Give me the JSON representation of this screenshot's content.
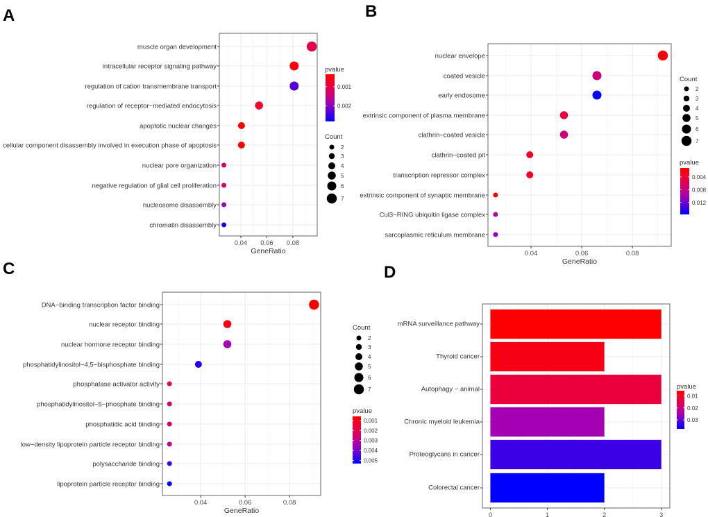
{
  "colors": {
    "low_p": "#FF0000",
    "mid1": "#E0005A",
    "mid2": "#A000B8",
    "high_p": "#0000FF",
    "grid": "#EBEBEB",
    "frame": "#7F7F7F"
  },
  "chart_data": [
    {
      "panel": "A",
      "type": "scatter",
      "xlabel": "GeneRatio",
      "xlim": [
        0.0235,
        0.0987
      ],
      "xticks": [
        0.04,
        0.06,
        0.08
      ],
      "xtick_labels": [
        "0.04",
        "0.06",
        "0.08"
      ],
      "size_legend_title": "Count",
      "size_legend": [
        2,
        3,
        4,
        5,
        6,
        7
      ],
      "color_legend_title": "pvalue",
      "color_range": [
        0.00036,
        0.0028
      ],
      "color_ticks": [
        0.001,
        0.002
      ],
      "color_tick_labels": [
        "0.001",
        "0.002"
      ],
      "terms": [
        {
          "label": "muscle organ development",
          "x": 0.0945,
          "count": 7,
          "p": 0.0011
        },
        {
          "label": "intracellular receptor signaling pathway",
          "x": 0.081,
          "count": 6,
          "p": 0.0005
        },
        {
          "label": "regulation of cation transmembrane transport",
          "x": 0.081,
          "count": 6,
          "p": 0.0023
        },
        {
          "label": "regulation of receptor−mediated endocytosis",
          "x": 0.054,
          "count": 5,
          "p": 0.0008
        },
        {
          "label": "apoptotic nuclear changes",
          "x": 0.0405,
          "count": 4,
          "p": 0.0003
        },
        {
          "label": "cellular component disassembly involved in execution phase of apoptosis",
          "x": 0.0405,
          "count": 4,
          "p": 0.0003
        },
        {
          "label": "nuclear pore organization",
          "x": 0.027,
          "count": 2,
          "p": 0.0013
        },
        {
          "label": "negative regulation of glial cell proliferation",
          "x": 0.027,
          "count": 2,
          "p": 0.0013
        },
        {
          "label": "nucleosome disassembly",
          "x": 0.027,
          "count": 2,
          "p": 0.0019
        },
        {
          "label": "chromatin disassembly",
          "x": 0.027,
          "count": 2,
          "p": 0.0027
        }
      ]
    },
    {
      "panel": "B",
      "type": "scatter",
      "xlabel": "GeneRatio",
      "xlim": [
        0.023,
        0.0953
      ],
      "xticks": [
        0.04,
        0.06,
        0.08
      ],
      "xtick_labels": [
        "0.04",
        "0.06",
        "0.08"
      ],
      "size_legend_title": "Count",
      "size_legend": [
        2,
        3,
        4,
        5,
        6,
        7
      ],
      "color_legend_title": "pvalue",
      "color_range": [
        0.0012,
        0.0157
      ],
      "color_ticks": [
        0.004,
        0.008,
        0.012
      ],
      "color_tick_labels": [
        "0.004",
        "0.008",
        "0.012"
      ],
      "terms": [
        {
          "label": "nuclear envelope",
          "x": 0.092,
          "count": 7,
          "p": 0.0018
        },
        {
          "label": "coated vesicle",
          "x": 0.066,
          "count": 6,
          "p": 0.0075
        },
        {
          "label": "early endosome",
          "x": 0.066,
          "count": 6,
          "p": 0.0155
        },
        {
          "label": "extrinsic component of plasma membrane",
          "x": 0.053,
          "count": 5,
          "p": 0.0048
        },
        {
          "label": "clathrin−coated vesicle",
          "x": 0.053,
          "count": 5,
          "p": 0.0075
        },
        {
          "label": "clathrin−coated pit",
          "x": 0.0395,
          "count": 4,
          "p": 0.0035
        },
        {
          "label": "transcription repressor complex",
          "x": 0.0395,
          "count": 4,
          "p": 0.0035
        },
        {
          "label": "extrinsic component of synaptic membrane",
          "x": 0.026,
          "count": 2,
          "p": 0.0013
        },
        {
          "label": "Cul3−RING ubiquitin ligase complex",
          "x": 0.026,
          "count": 2,
          "p": 0.0095
        },
        {
          "label": "sarcoplasmic reticulum membrane",
          "x": 0.026,
          "count": 2,
          "p": 0.0105
        }
      ]
    },
    {
      "panel": "C",
      "type": "scatter",
      "xlabel": "GeneRatio",
      "xlim": [
        0.0228,
        0.094
      ],
      "xticks": [
        0.04,
        0.06,
        0.08
      ],
      "xtick_labels": [
        "0.04",
        "0.06",
        "0.08"
      ],
      "size_legend_title": "Count",
      "size_legend": [
        2,
        3,
        4,
        5,
        6,
        7
      ],
      "color_legend_title": "pvalue",
      "color_range": [
        0.0006,
        0.0053
      ],
      "color_ticks": [
        0.001,
        0.002,
        0.003,
        0.004,
        0.005
      ],
      "color_tick_labels": [
        "0.001",
        "0.002",
        "0.003",
        "0.004",
        "0.005"
      ],
      "terms": [
        {
          "label": "DNA−binding transcription factor binding",
          "x": 0.091,
          "count": 7,
          "p": 0.0007
        },
        {
          "label": "nuclear receptor binding",
          "x": 0.052,
          "count": 5,
          "p": 0.001
        },
        {
          "label": "nuclear hormone receptor binding",
          "x": 0.052,
          "count": 5,
          "p": 0.0035
        },
        {
          "label": "phosphatidylinositol−4,5−bisphosphate binding",
          "x": 0.039,
          "count": 4,
          "p": 0.0049
        },
        {
          "label": "phosphatase activator activity",
          "x": 0.026,
          "count": 2,
          "p": 0.0018
        },
        {
          "label": "phosphatidylinositol−5−phosphate binding",
          "x": 0.026,
          "count": 2,
          "p": 0.0025
        },
        {
          "label": "phosphatidic acid binding",
          "x": 0.026,
          "count": 2,
          "p": 0.0025
        },
        {
          "label": "low−density lipoprotein particle receptor binding",
          "x": 0.026,
          "count": 2,
          "p": 0.003
        },
        {
          "label": "polysaccharide binding",
          "x": 0.026,
          "count": 2,
          "p": 0.0046
        },
        {
          "label": "lipoprotein particle receptor binding",
          "x": 0.026,
          "count": 2,
          "p": 0.0053
        }
      ]
    },
    {
      "panel": "D",
      "type": "bar",
      "xlabel": "",
      "xlim": [
        -0.14,
        3.15
      ],
      "xticks": [
        0,
        1,
        2,
        3
      ],
      "xtick_labels": [
        "0",
        "1",
        "2",
        "3"
      ],
      "color_legend_title": "pvalue",
      "color_range": [
        0.0056,
        0.0375
      ],
      "color_ticks": [
        0.01,
        0.02,
        0.03
      ],
      "color_tick_labels": [
        "0.01",
        "0.02",
        "0.03"
      ],
      "terms": [
        {
          "label": "mRNA surveillance pathway",
          "x": 3,
          "p": 0.0056
        },
        {
          "label": "Thyroid cancer",
          "x": 2,
          "p": 0.008
        },
        {
          "label": "Autophagy − animal",
          "x": 3,
          "p": 0.013
        },
        {
          "label": "Chronic myeloid leukemia",
          "x": 2,
          "p": 0.025
        },
        {
          "label": "Proteoglycans in cancer",
          "x": 3,
          "p": 0.033
        },
        {
          "label": "Colorectal cancer",
          "x": 2,
          "p": 0.0375
        }
      ]
    }
  ]
}
